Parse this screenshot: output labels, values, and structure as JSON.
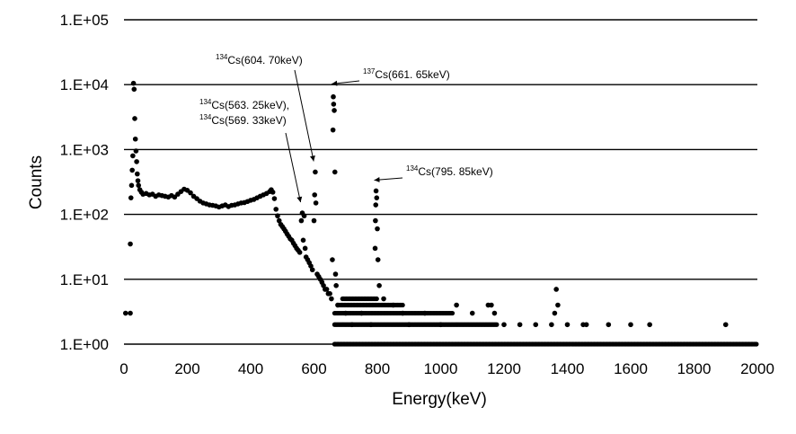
{
  "chart_data": {
    "type": "scatter",
    "title": "",
    "xlabel": "Energy(keV)",
    "ylabel": "Counts",
    "xlim": [
      0,
      2000
    ],
    "ylim": [
      1,
      100000
    ],
    "yscale": "log",
    "grid": "horizontal",
    "legend": "none",
    "x_ticks": [
      "0",
      "200",
      "400",
      "600",
      "800",
      "1000",
      "1200",
      "1400",
      "1600",
      "1800",
      "2000"
    ],
    "y_ticks": [
      "1.E+00",
      "1.E+01",
      "1.E+02",
      "1.E+03",
      "1.E+04",
      "1.E+05"
    ],
    "marker_color": "#000000",
    "annotations": [
      {
        "sup": "134",
        "text": "Cs(604. 70keV)",
        "x": 604.7,
        "y": 450
      },
      {
        "sup": "137",
        "text": "Cs(661. 65keV)",
        "x": 661.65,
        "y": 7000
      },
      {
        "sup": "134",
        "text": "Cs(563. 25keV),",
        "x": 563.25,
        "y": 105
      },
      {
        "sup": "134",
        "text": "Cs(569. 33keV)",
        "x": 569.33,
        "y": 105
      },
      {
        "sup": "134",
        "text": "Cs(795. 85keV)",
        "x": 795.85,
        "y": 230
      }
    ],
    "series": [
      {
        "points": [
          [
            5,
            3
          ],
          [
            20,
            35
          ],
          [
            20,
            3
          ],
          [
            22,
            180
          ],
          [
            24,
            280
          ],
          [
            26,
            480
          ],
          [
            28,
            800
          ],
          [
            30,
            10500
          ],
          [
            32,
            8500
          ],
          [
            34,
            3000
          ],
          [
            36,
            1450
          ],
          [
            38,
            950
          ],
          [
            40,
            650
          ],
          [
            42,
            420
          ],
          [
            44,
            330
          ],
          [
            46,
            280
          ],
          [
            50,
            240
          ],
          [
            55,
            220
          ],
          [
            60,
            205
          ],
          [
            70,
            210
          ],
          [
            80,
            200
          ],
          [
            90,
            205
          ],
          [
            100,
            190
          ],
          [
            110,
            200
          ],
          [
            120,
            195
          ],
          [
            130,
            190
          ],
          [
            140,
            185
          ],
          [
            150,
            195
          ],
          [
            160,
            185
          ],
          [
            170,
            205
          ],
          [
            180,
            225
          ],
          [
            190,
            245
          ],
          [
            200,
            235
          ],
          [
            210,
            215
          ],
          [
            220,
            190
          ],
          [
            230,
            175
          ],
          [
            240,
            160
          ],
          [
            250,
            150
          ],
          [
            260,
            145
          ],
          [
            270,
            140
          ],
          [
            280,
            138
          ],
          [
            290,
            135
          ],
          [
            300,
            130
          ],
          [
            310,
            135
          ],
          [
            320,
            140
          ],
          [
            330,
            132
          ],
          [
            340,
            138
          ],
          [
            350,
            140
          ],
          [
            360,
            145
          ],
          [
            370,
            150
          ],
          [
            380,
            152
          ],
          [
            390,
            158
          ],
          [
            400,
            165
          ],
          [
            410,
            170
          ],
          [
            420,
            180
          ],
          [
            430,
            190
          ],
          [
            440,
            200
          ],
          [
            450,
            210
          ],
          [
            460,
            225
          ],
          [
            465,
            240
          ],
          [
            470,
            220
          ],
          [
            475,
            175
          ],
          [
            480,
            120
          ],
          [
            485,
            95
          ],
          [
            490,
            80
          ],
          [
            495,
            70
          ],
          [
            500,
            65
          ],
          [
            505,
            60
          ],
          [
            510,
            55
          ],
          [
            515,
            50
          ],
          [
            520,
            46
          ],
          [
            525,
            42
          ],
          [
            530,
            40
          ],
          [
            535,
            36
          ],
          [
            540,
            33
          ],
          [
            545,
            30
          ],
          [
            550,
            28
          ],
          [
            555,
            26
          ],
          [
            560,
            80
          ],
          [
            563,
            105
          ],
          [
            566,
            40
          ],
          [
            569,
            95
          ],
          [
            572,
            30
          ],
          [
            575,
            22
          ],
          [
            580,
            20
          ],
          [
            585,
            18
          ],
          [
            590,
            16
          ],
          [
            595,
            14
          ],
          [
            600,
            80
          ],
          [
            602,
            200
          ],
          [
            604,
            450
          ],
          [
            606,
            150
          ],
          [
            610,
            12
          ],
          [
            615,
            11
          ],
          [
            620,
            10
          ],
          [
            625,
            9
          ],
          [
            630,
            8
          ],
          [
            635,
            7
          ],
          [
            640,
            7
          ],
          [
            645,
            6
          ],
          [
            650,
            6
          ],
          [
            655,
            5
          ],
          [
            658,
            20
          ],
          [
            660,
            2000
          ],
          [
            661,
            6500
          ],
          [
            662,
            5000
          ],
          [
            664,
            4000
          ],
          [
            666,
            450
          ],
          [
            668,
            12
          ],
          [
            670,
            8
          ],
          [
            675,
            4
          ],
          [
            700,
            3
          ],
          [
            720,
            2
          ],
          [
            750,
            3
          ],
          [
            780,
            2
          ],
          [
            793,
            30
          ],
          [
            794,
            80
          ],
          [
            795,
            140
          ],
          [
            796,
            230
          ],
          [
            798,
            180
          ],
          [
            800,
            60
          ],
          [
            802,
            20
          ],
          [
            806,
            8
          ],
          [
            820,
            5
          ],
          [
            850,
            4
          ],
          [
            880,
            3
          ],
          [
            900,
            2
          ],
          [
            950,
            3
          ],
          [
            1000,
            2
          ],
          [
            1050,
            4
          ],
          [
            1100,
            3
          ],
          [
            1150,
            4
          ],
          [
            1160,
            4
          ],
          [
            1170,
            3
          ],
          [
            1200,
            2
          ],
          [
            1250,
            2
          ],
          [
            1300,
            2
          ],
          [
            1350,
            2
          ],
          [
            1360,
            3
          ],
          [
            1365,
            7
          ],
          [
            1370,
            4
          ],
          [
            1400,
            2
          ],
          [
            1450,
            2
          ],
          [
            1460,
            2
          ],
          [
            1530,
            2
          ],
          [
            1600,
            2
          ],
          [
            1660,
            2
          ],
          [
            1900,
            2
          ]
        ],
        "floor_band": {
          "y": 1,
          "x_from": 665,
          "x_to": 2000
        },
        "dense_bands": [
          {
            "y": 2,
            "x_from": 665,
            "x_to": 1180
          },
          {
            "y": 3,
            "x_from": 665,
            "x_to": 1040
          },
          {
            "y": 4,
            "x_from": 680,
            "x_to": 880
          },
          {
            "y": 5,
            "x_from": 690,
            "x_to": 800
          }
        ]
      }
    ]
  }
}
